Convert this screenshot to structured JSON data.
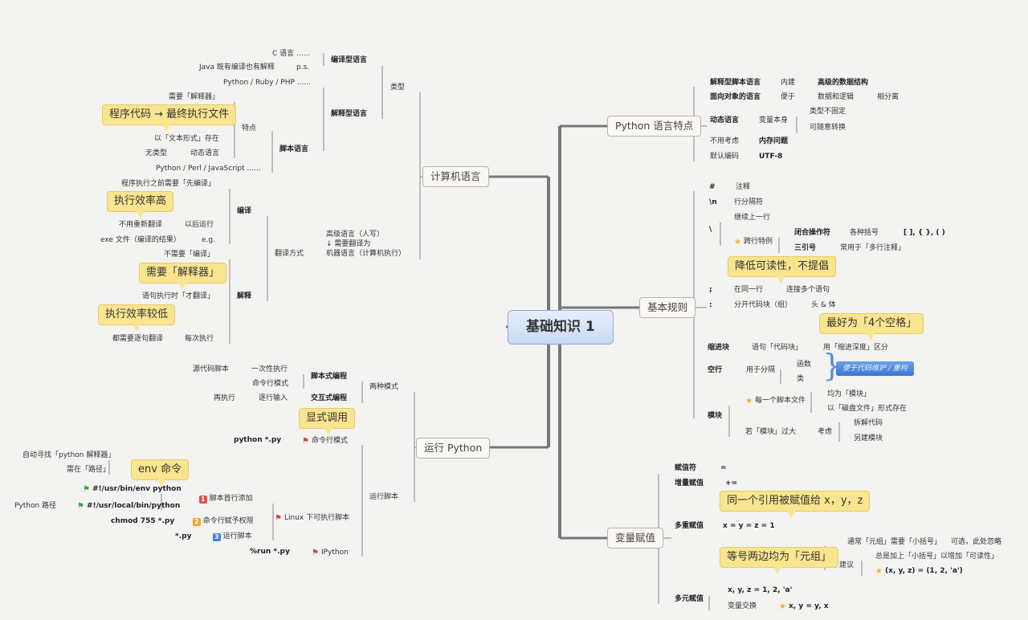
{
  "center": {
    "title": "基础知识 1"
  },
  "computer_language": {
    "title": "计算机语言",
    "c_lang": "C 语言 ......",
    "java": "Java 既有编译也有解释",
    "ps": "p.s.",
    "compiled": "编译型语言",
    "python_ruby": "Python / Ruby / PHP ......",
    "type": "类型",
    "interpreted": "解释型语言",
    "need_interpreter": "需要「解释器」",
    "callout_code_exe": "程序代码 → 最终执行文件",
    "feature": "特点",
    "text_form": "以「文本形式」存在",
    "script_lang": "脚本语言",
    "untyped": "无类型",
    "dynamic": "动态语言",
    "python_perl": "Python / Perl / JavaScript ......",
    "compile_first": "程序执行之前需要「先编译」",
    "callout_high_eff": "执行效率高",
    "compile": "编译",
    "no_retranslate": "不用重新翻译",
    "run_later": "以后运行",
    "exe_file": "exe 文件（编译的结果）",
    "eg": "e.g.",
    "translate_mode": "翻译方式",
    "high_level": "高级语言（人写）",
    "need_translate": "↓ 需要翻译为",
    "machine": "机器语言（计算机执行）",
    "no_compile": "不需要「编译」",
    "callout_need_interp": "需要「解释器」",
    "translate_on_run": "语句执行时「才翻译」",
    "interpret": "解释",
    "callout_low_eff": "执行效率较低",
    "line_by_line": "都需要逐句翻译",
    "every_run": "每次执行"
  },
  "run_python": {
    "title": "运行 Python",
    "source_script": "源代码脚本",
    "one_time": "一次性执行",
    "script_prog": "脚本式编程",
    "cmd_mode": "命令行模式",
    "two_modes": "两种模式",
    "rerun": "再执行",
    "line_input": "逐行输入",
    "interactive": "交互式编程",
    "callout_explicit": "显式调用",
    "python_py": "python *.py",
    "cmd_mode2": "命令行模式",
    "auto_find": "自动寻找「python 解释器」",
    "need_path": "需在「路径」",
    "callout_env": "env 命令",
    "shebang_env": "#!/usr/bin/env python",
    "first_line": "脚本首行添加",
    "run_script": "运行脚本",
    "python_path": "Python 路径",
    "shebang_local": "#!/usr/local/bin/python",
    "linux_exec": "Linux 下可执行脚本",
    "chmod": "chmod 755 *.py",
    "grant": "命令行赋予权限",
    "star_py": "*.py",
    "run_script2": "运行脚本",
    "run_py": "%run *.py",
    "ipython": "IPython",
    "badge1": "1",
    "badge2": "2",
    "badge3": "3"
  },
  "python_features": {
    "title": "Python 语言特点",
    "interp_script": "解释型脚本语言",
    "builtin": "内建",
    "adv_ds": "高级的数据结构",
    "oop": "面向对象的语言",
    "convenient": "便于",
    "data_logic": "数据和逻辑",
    "separate": "相分离",
    "type_not_fixed": "类型不固定",
    "dynamic": "动态语言",
    "var_itself": "变量本身",
    "convertible": "可随意转换",
    "no_consider": "不用考虑",
    "memory": "内存问题",
    "default_enc": "默认编码",
    "utf8": "UTF-8"
  },
  "basic_rules": {
    "title": "基本规则",
    "hash": "#",
    "comment": "注释",
    "newline": "\\n",
    "line_sep": "行分隔符",
    "continue": "继续上一行",
    "backslash": "\\",
    "closing_op": "闭合操作符",
    "brackets": "各种括号",
    "bracket_chars": "[ ], { }, ( )",
    "cross_line": "跨行特例",
    "triple_quote": "三引号",
    "multiline_comment": "常用于「多行注释」",
    "callout_readability": "降低可读性，不提倡",
    "semicolon": ";",
    "same_line": "在同一行",
    "join_stmts": "连接多个语句",
    "colon": ":",
    "split_block": "分开代码块（组）",
    "head_body": "头 & 体",
    "callout_4spaces": "最好为「4个空格」",
    "indent_block": "缩进块",
    "stmt_block": "语句「代码块」",
    "indent_depth": "用「缩进深度」区分",
    "function": "函数",
    "blank_line": "空行",
    "separate": "用于分隔",
    "class": "类",
    "maintain": "便于代码维护 / 重构",
    "all_modules": "均为「模块」",
    "each_script": "每一个脚本文件",
    "module": "模块",
    "disk_file": "以「磁盘文件」形式存在",
    "split_code": "拆解代码",
    "module_too_big": "若「模块」过大",
    "consider": "考虑",
    "new_module": "另建模块"
  },
  "assignment": {
    "title": "变量赋值",
    "assign_op": "赋值符",
    "eq": "=",
    "aug_assign": "增量赋值",
    "plus_eq": "+=",
    "callout_same_ref": "同一个引用被赋值给 x，y，z",
    "multi_assign": "多重赋值",
    "xyz1": "x = y = z = 1",
    "tuple_paren": "通常「元组」需要「小括号」",
    "optional": "可选，此处忽略",
    "callout_tuple": "等号两边均为「元组」",
    "always_paren": "总是加上「小括号」以增加「可读性」",
    "suggest": "建议",
    "tuple_example": "(x, y, z) = (1, 2, 'a')",
    "xyz_tuple": "x, y, z = 1, 2, 'a'",
    "multi_elem": "多元赋值",
    "swap": "变量交换",
    "swap_example": "x, y = y, x"
  },
  "colors": {
    "callout": "#f9e58f",
    "center": "#c9daf4",
    "connector": "#777777",
    "flag_red": "#d9413a",
    "flag_green": "#2aa546",
    "star": "#f0b429",
    "badge1": "#e0524a",
    "badge2": "#f0a92c",
    "badge3": "#3d83d9"
  }
}
